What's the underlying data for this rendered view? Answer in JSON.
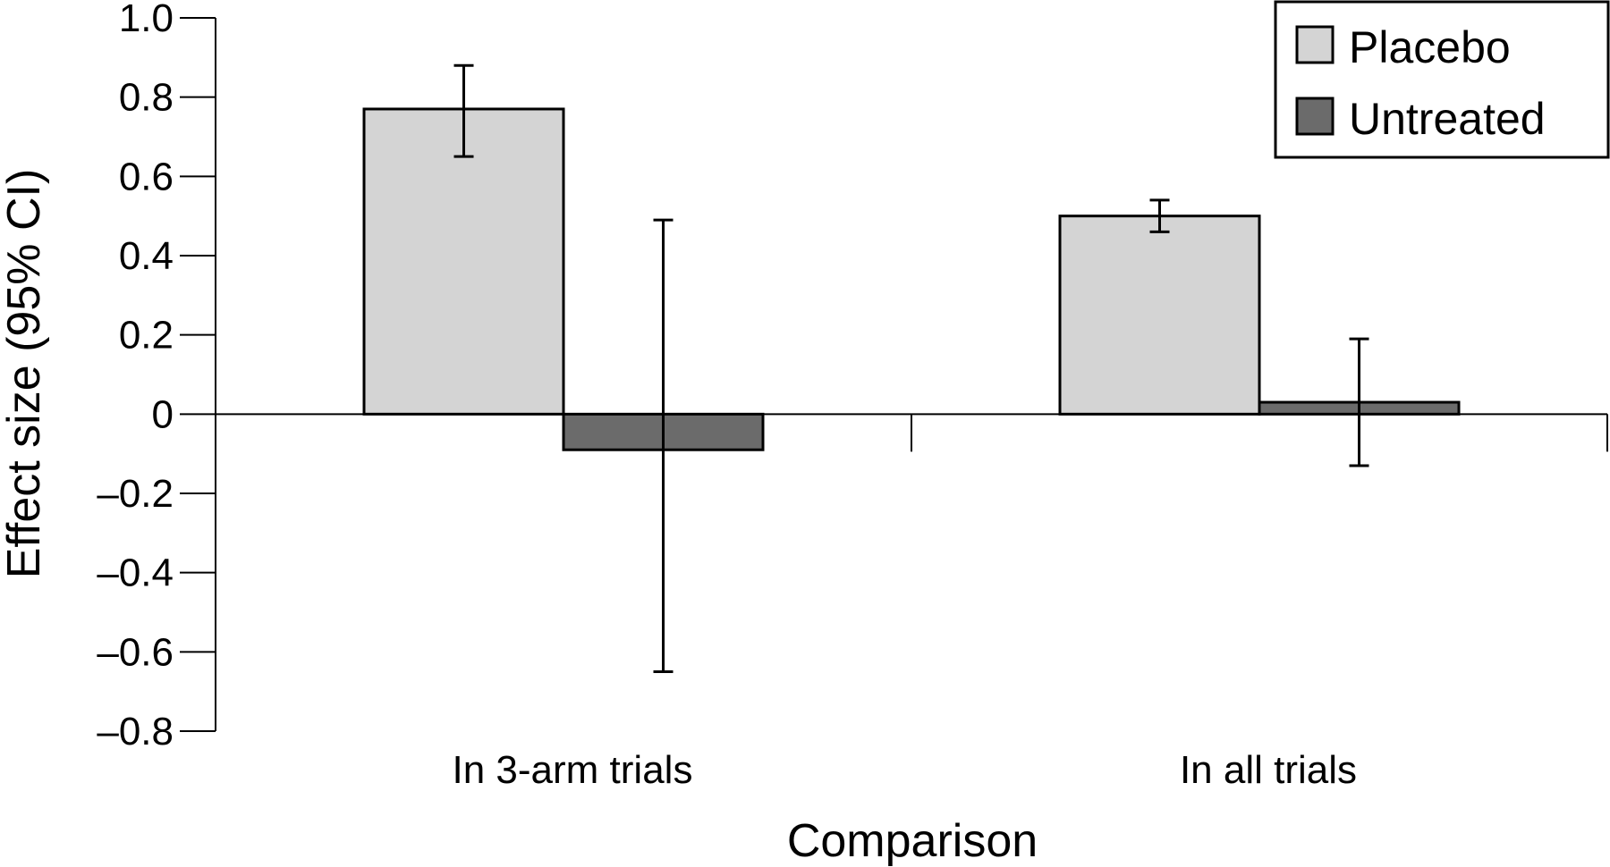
{
  "chart_data": {
    "type": "bar",
    "title": "",
    "xlabel": "Comparison",
    "ylabel": "Effect size (95% CI)",
    "ylim": [
      -0.8,
      1.0
    ],
    "yticks": [
      1.0,
      0.8,
      0.6,
      0.4,
      0.2,
      0,
      -0.2,
      -0.4,
      -0.6,
      -0.8
    ],
    "ytick_labels": [
      "1.0",
      "0.8",
      "0.6",
      "0.4",
      "0.2",
      "0",
      "–0.2",
      "–0.4",
      "–0.6",
      "–0.8"
    ],
    "categories": [
      "In 3-arm trials",
      "In all trials"
    ],
    "series": [
      {
        "name": "Placebo",
        "color": "#d4d4d4",
        "values": [
          0.77,
          0.5
        ],
        "ci_low": [
          0.65,
          0.46
        ],
        "ci_high": [
          0.88,
          0.54
        ]
      },
      {
        "name": "Untreated",
        "color": "#6b6b6b",
        "values": [
          -0.09,
          0.03
        ],
        "ci_low": [
          -0.65,
          -0.13
        ],
        "ci_high": [
          0.49,
          0.19
        ]
      }
    ],
    "grid": false,
    "legend_position": "top-right"
  }
}
